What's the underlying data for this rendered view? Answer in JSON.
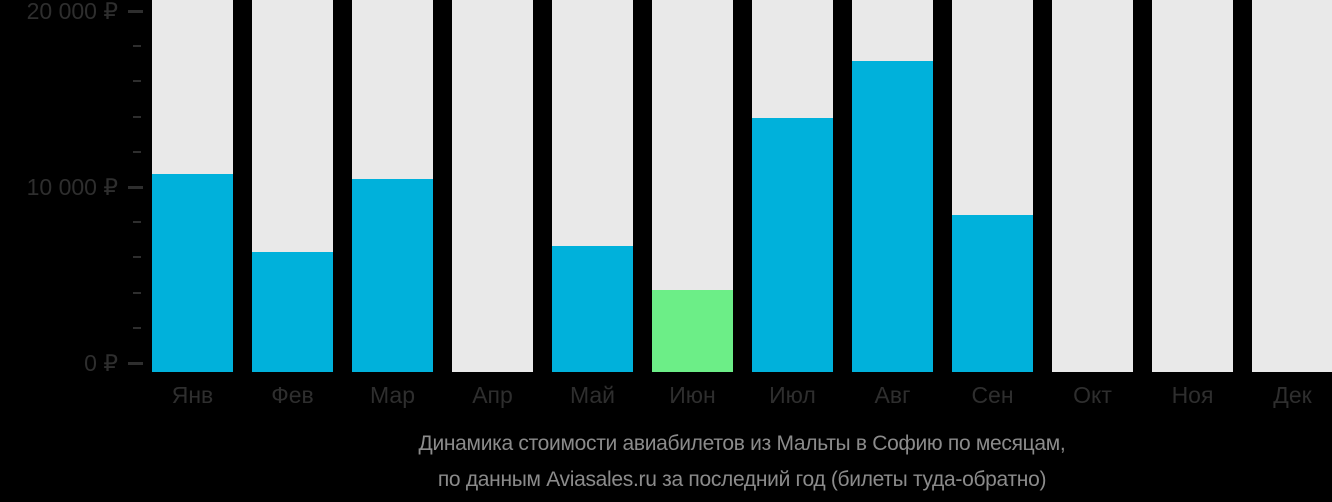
{
  "chart_data": {
    "type": "bar",
    "title_line1": "Динамика стоимости авиабилетов из Мальты в Софию по месяцам,",
    "title_line2": "по данным Aviasales.ru за последний год (билеты туда-обратно)",
    "categories": [
      "Янв",
      "Фев",
      "Мар",
      "Апр",
      "Май",
      "Июн",
      "Июл",
      "Авг",
      "Сен",
      "Окт",
      "Ноя",
      "Дек"
    ],
    "values": [
      10900,
      6600,
      10600,
      null,
      6950,
      4500,
      13950,
      17100,
      8650,
      null,
      null,
      null
    ],
    "highlight_index": 5,
    "highlight_meaning": "cheapest-month",
    "currency": "₽",
    "y_axis": {
      "min": 0,
      "max": 20000,
      "major_step": 10000,
      "minor_step": 2000,
      "labels": [
        "0 ₽",
        "10 000 ₽",
        "20 000 ₽"
      ]
    },
    "xlabel": "",
    "ylabel": "",
    "grid": false,
    "legend_position": "none",
    "colors": {
      "bar": "#00B1DB",
      "bar_highlight": "#6CEE87",
      "column_bg": "#E9E9E9",
      "background": "#000000",
      "axis_text": "#2E2E2E",
      "tick": "#2E2E2E",
      "caption_text": "#8B8B8B"
    }
  }
}
